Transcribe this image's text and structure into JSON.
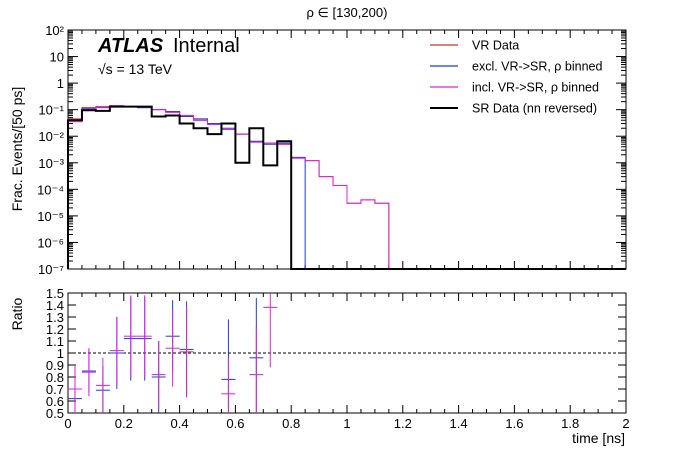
{
  "chart_data": {
    "type": "line",
    "title": "ρ ∈ [130,200)",
    "atlas_label": "ATLAS",
    "atlas_suffix": "Internal",
    "energy_label": "√s = 13 TeV",
    "xlabel": "time [ns]",
    "ylabel_top": "Frac. Events/[50 ps]",
    "ylabel_bottom": "Ratio",
    "xlim": [
      0,
      2
    ],
    "ylim_top": [
      1e-07,
      100
    ],
    "yscale_top": "log",
    "ylim_bottom": [
      0.5,
      1.5
    ],
    "x_ticks": [
      "0",
      "0.2",
      "0.4",
      "0.6",
      "0.8",
      "1",
      "1.2",
      "1.4",
      "1.6",
      "1.8",
      "2"
    ],
    "y_ticks_top": [
      "10⁻⁷",
      "10⁻⁶",
      "10⁻⁵",
      "10⁻⁴",
      "10⁻³",
      "10⁻²",
      "10⁻¹",
      "1",
      "10",
      "10²"
    ],
    "y_ticks_bottom": [
      "0.5",
      "0.6",
      "0.7",
      "0.8",
      "0.9",
      "1",
      "1.1",
      "1.2",
      "1.3",
      "1.4",
      "1.5"
    ],
    "bin_edges": [
      0,
      0.05,
      0.1,
      0.15,
      0.2,
      0.25,
      0.3,
      0.35,
      0.4,
      0.45,
      0.5,
      0.55,
      0.6,
      0.65,
      0.7,
      0.75,
      0.8,
      0.85,
      0.9,
      0.95,
      1.0,
      1.05,
      1.1,
      1.15,
      1.2,
      1.25,
      1.3,
      1.35,
      1.4,
      1.45,
      1.5,
      1.55,
      1.6,
      1.65,
      1.7,
      1.75,
      1.8,
      1.85,
      1.9,
      1.95,
      2.0
    ],
    "legend_position": "top-right",
    "series": [
      {
        "name": "VR Data",
        "color": "#c0392b",
        "values": [
          0.045,
          0.12,
          0.13,
          0.14,
          0.13,
          0.12,
          0.1,
          0.08,
          0.055,
          0.04,
          0.028,
          0.018,
          0.012,
          0.006,
          0.0055,
          0.005,
          0.0015,
          0.0012,
          0.0003,
          0.00014,
          3e-05,
          4e-05,
          3e-05,
          null,
          null,
          null,
          null,
          null,
          null,
          null,
          null,
          null,
          null,
          null,
          null,
          null,
          null,
          null,
          null,
          null
        ]
      },
      {
        "name": "excl. VR->SR, ρ binned",
        "color": "#1f3bd4",
        "values": [
          0.04,
          0.11,
          0.12,
          0.135,
          0.13,
          0.12,
          0.1,
          0.085,
          0.055,
          0.045,
          0.03,
          0.02,
          0.012,
          0.0065,
          0.005,
          0.0055,
          0.0016,
          null,
          null,
          null,
          null,
          null,
          null,
          null,
          null,
          null,
          null,
          null,
          null,
          null,
          null,
          null,
          null,
          null,
          null,
          null,
          null,
          null,
          null,
          null
        ]
      },
      {
        "name": "incl. VR->SR, ρ binned",
        "color": "#e020e0",
        "values": [
          0.035,
          0.105,
          0.125,
          0.14,
          0.13,
          0.125,
          0.1,
          0.08,
          0.06,
          0.04,
          0.028,
          0.018,
          0.012,
          0.006,
          0.0055,
          0.005,
          0.0015,
          0.0012,
          0.0003,
          0.00014,
          3e-05,
          4e-05,
          3e-05,
          null,
          null,
          null,
          null,
          null,
          null,
          null,
          null,
          null,
          null,
          null,
          null,
          null,
          null,
          null,
          null,
          null
        ]
      },
      {
        "name": "SR Data (nn reversed)",
        "color": "#000000",
        "values": [
          0.04,
          0.095,
          0.09,
          0.13,
          0.13,
          0.13,
          0.055,
          0.06,
          0.03,
          0.02,
          0.012,
          0.03,
          0.001,
          0.02,
          0.0008,
          0.0065,
          null,
          null,
          null,
          null,
          null,
          null,
          null,
          null,
          null,
          null,
          null,
          null,
          null,
          null,
          null,
          null,
          null,
          null,
          null,
          null,
          null,
          null,
          null,
          null
        ]
      }
    ],
    "ratio_series": [
      {
        "name": "excl. VR->SR, ρ binned",
        "color": "#1f3bd4",
        "points": [
          {
            "x": 0.025,
            "y": 0.62,
            "err": 0.12
          },
          {
            "x": 0.075,
            "y": 0.85,
            "err": 0.18
          },
          {
            "x": 0.125,
            "y": 0.69,
            "err": 0.2
          },
          {
            "x": 0.175,
            "y": 1.0,
            "err": 0.3
          },
          {
            "x": 0.225,
            "y": 1.12,
            "err": 0.35
          },
          {
            "x": 0.275,
            "y": 1.12,
            "err": 0.35
          },
          {
            "x": 0.325,
            "y": 0.8,
            "err": 0.3
          },
          {
            "x": 0.375,
            "y": 1.14,
            "err": 0.3
          },
          {
            "x": 0.425,
            "y": 1.03,
            "err": 0.4
          },
          {
            "x": 0.575,
            "y": 0.78,
            "err": 0.5
          },
          {
            "x": 0.675,
            "y": 0.96,
            "err": 0.5
          }
        ]
      },
      {
        "name": "incl. VR->SR, ρ binned",
        "color": "#e020e0",
        "points": [
          {
            "x": 0.025,
            "y": 0.7,
            "err": 0.2
          },
          {
            "x": 0.075,
            "y": 0.84,
            "err": 0.2
          },
          {
            "x": 0.125,
            "y": 0.73,
            "err": 0.23
          },
          {
            "x": 0.175,
            "y": 1.02,
            "err": 0.28
          },
          {
            "x": 0.225,
            "y": 1.14,
            "err": 0.34
          },
          {
            "x": 0.275,
            "y": 1.14,
            "err": 0.34
          },
          {
            "x": 0.325,
            "y": 0.82,
            "err": 0.28
          },
          {
            "x": 0.375,
            "y": 1.04,
            "err": 0.32
          },
          {
            "x": 0.425,
            "y": 1.01,
            "err": 0.38
          },
          {
            "x": 0.575,
            "y": 0.66,
            "err": 0.3
          },
          {
            "x": 0.675,
            "y": 0.82,
            "err": 0.4
          },
          {
            "x": 0.725,
            "y": 1.38,
            "err": 0.5
          }
        ]
      }
    ]
  }
}
